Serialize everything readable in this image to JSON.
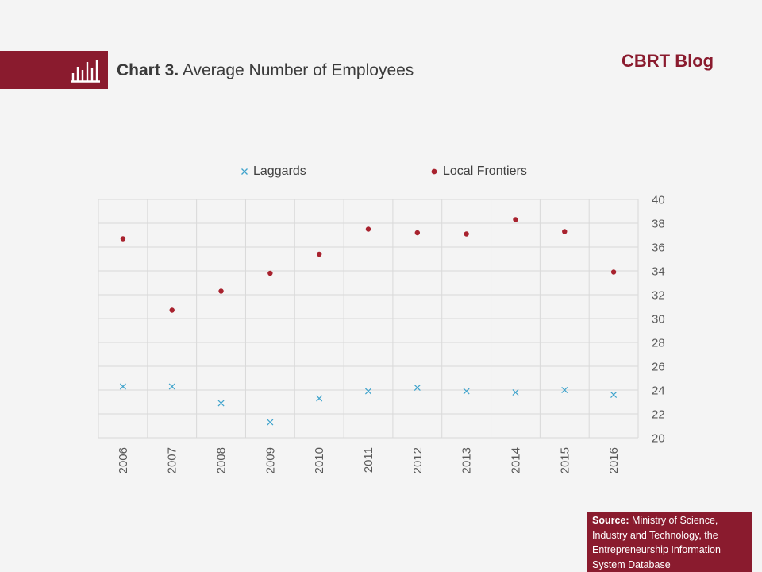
{
  "header": {
    "title_prefix": "Chart 3.",
    "title_text": "Average Number of Employees",
    "brand": "CBRT Blog",
    "icon": "bar-chart-icon"
  },
  "source": {
    "label": "Source:",
    "text": "Ministry of Science, Industry and Technology, the Entrepreneurship Information System Database"
  },
  "colors": {
    "brand": "#8a1b2e",
    "laggards": "#3fa3cc",
    "local_frontiers": "#a8222e"
  },
  "chart_data": {
    "type": "scatter",
    "title": "Chart 3. Average Number of Employees",
    "xlabel": "",
    "ylabel": "",
    "categories": [
      "2006",
      "2007",
      "2008",
      "2009",
      "2010",
      "2011",
      "2012",
      "2013",
      "2014",
      "2015",
      "2016"
    ],
    "ylim": [
      20,
      40
    ],
    "yticks": [
      20,
      22,
      24,
      26,
      28,
      30,
      32,
      34,
      36,
      38,
      40
    ],
    "y_axis_side": "right",
    "grid": true,
    "legend_position": "top",
    "series": [
      {
        "name": "Laggards",
        "marker": "x",
        "values": [
          24.3,
          24.3,
          22.9,
          21.3,
          23.3,
          23.9,
          24.2,
          23.9,
          23.8,
          24.0,
          23.6
        ]
      },
      {
        "name": "Local Frontiers",
        "marker": "dot",
        "values": [
          36.7,
          30.7,
          32.3,
          33.8,
          35.4,
          37.5,
          37.2,
          37.1,
          38.3,
          37.3,
          33.9
        ]
      }
    ]
  }
}
